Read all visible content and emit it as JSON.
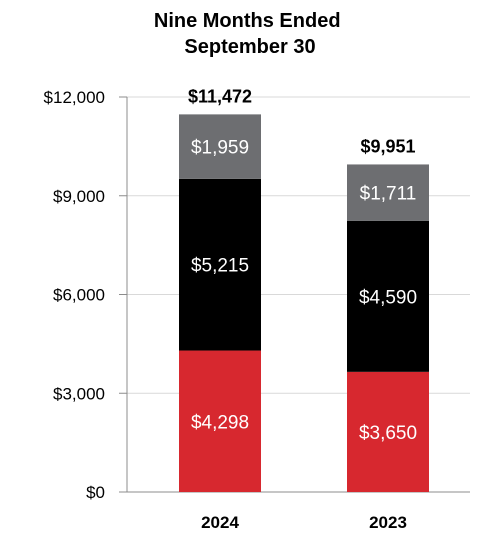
{
  "chart_data": {
    "type": "bar",
    "stacked": true,
    "title": "Nine Months Ended\nSeptember 30",
    "xlabel": "",
    "ylabel": "",
    "categories": [
      "2024",
      "2023"
    ],
    "series": [
      {
        "values": [
          4298,
          3650
        ],
        "labels": [
          "$4,298",
          "$3,650"
        ],
        "color": "#d7282f"
      },
      {
        "values": [
          5215,
          4590
        ],
        "labels": [
          "$5,215",
          "$4,590"
        ],
        "color": "#000000"
      },
      {
        "values": [
          1959,
          1711
        ],
        "labels": [
          "$1,959",
          "$1,711"
        ],
        "color": "#6d6e71"
      }
    ],
    "totals": [
      11472,
      9951
    ],
    "total_labels": [
      "$11,472",
      "$9,951"
    ],
    "ylim": [
      0,
      12000
    ],
    "yticks": [
      0,
      3000,
      6000,
      9000,
      12000
    ],
    "ytick_labels": [
      "$0",
      "$3,000",
      "$6,000",
      "$9,000",
      "$12,000"
    ],
    "grid": true,
    "legend": "none"
  }
}
